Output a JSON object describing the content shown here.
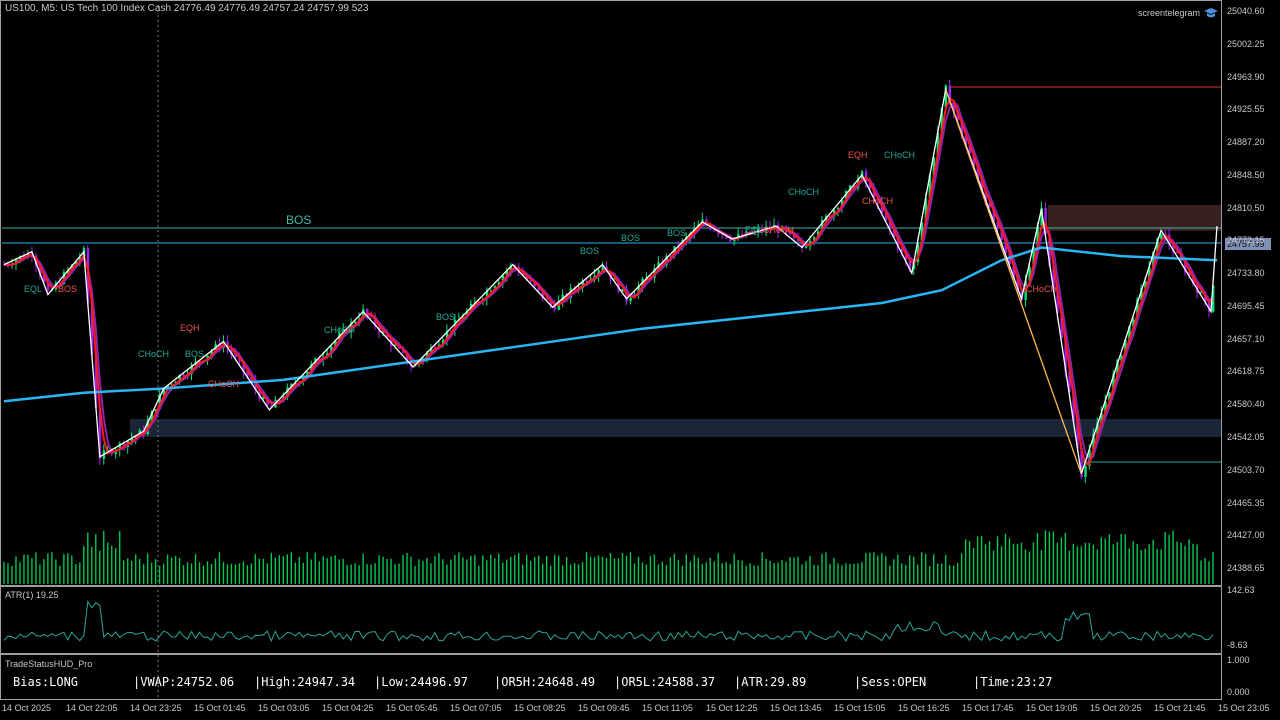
{
  "window": {
    "title": "US100, M5:  US Tech 100 Index Cash  24776.49 24776.49 24757.24 24757.99  523",
    "brand": "screentelegram"
  },
  "price_axis": {
    "ticks": [
      "25040.60",
      "25002.25",
      "24963.90",
      "24925.55",
      "24887.20",
      "24848.50",
      "24810.50",
      "24772.15",
      "24733.80",
      "24695.45",
      "24657.10",
      "24618.75",
      "24580.40",
      "24542.05",
      "24503.70",
      "24465.35",
      "24427.00",
      "24388.65"
    ],
    "current_price": "24757.99"
  },
  "annotations": {
    "bos_big": "BOS",
    "labels": [
      {
        "text": "EQL",
        "color": "#26a69a"
      },
      {
        "text": "BOS",
        "color": "#ef5350"
      },
      {
        "text": "EQH",
        "color": "#ef5350"
      },
      {
        "text": "CHoCH",
        "color": "#26a69a"
      },
      {
        "text": "BOS",
        "color": "#26a69a"
      },
      {
        "text": "CHoCH",
        "color": "#ef5350"
      },
      {
        "text": "CHoCH",
        "color": "#26a69a"
      },
      {
        "text": "BOS",
        "color": "#26a69a"
      },
      {
        "text": "BOS",
        "color": "#26a69a"
      },
      {
        "text": "BOS",
        "color": "#26a69a"
      },
      {
        "text": "BOS",
        "color": "#26a69a"
      },
      {
        "text": "CHoCH",
        "color": "#26a69a"
      },
      {
        "text": "EQL",
        "color": "#26a69a"
      },
      {
        "text": "CHoCH",
        "color": "#ef5350"
      },
      {
        "text": "EQH",
        "color": "#ef5350"
      },
      {
        "text": "CHoCH",
        "color": "#26a69a"
      },
      {
        "text": "CHoCH",
        "color": "#ef5350"
      },
      {
        "text": "CHoCH",
        "color": "#ef5350"
      }
    ]
  },
  "atr_panel": {
    "label": "ATR(1) 19.25",
    "ticks": [
      "142.63",
      "-8.63"
    ]
  },
  "hud_panel": {
    "title": "TradeStatusHUD_Pro",
    "ticks": [
      "1.000",
      "0.000"
    ],
    "fields": [
      "Bias:LONG",
      "|VWAP:24752.06",
      "|High:24947.34",
      "|Low:24496.97",
      "|OR5H:24648.49",
      "|OR5L:24588.37",
      "|ATR:29.89",
      "|Sess:OPEN",
      "|Time:23:27"
    ]
  },
  "time_axis": {
    "ticks": [
      "14 Oct 2025",
      "14 Oct 22:05",
      "14 Oct 23:25",
      "15 Oct 01:45",
      "15 Oct 03:05",
      "15 Oct 04:25",
      "15 Oct 05:45",
      "15 Oct 07:05",
      "15 Oct 08:25",
      "15 Oct 09:45",
      "15 Oct 11:05",
      "15 Oct 12:25",
      "15 Oct 13:45",
      "15 Oct 15:05",
      "15 Oct 16:25",
      "15 Oct 17:45",
      "15 Oct 19:05",
      "15 Oct 20:25",
      "15 Oct 21:45",
      "15 Oct 23:05"
    ]
  },
  "colors": {
    "bull_candle": "#00e676",
    "bear_candle": "#a020f0",
    "vwap": "#29b6f6",
    "fast_ma": "#ff1a1a",
    "slow_ma": "#8e24aa",
    "zigzag": "#ffffff",
    "zigzag_alt": "#ffb74d",
    "volume": "#00c853",
    "atr": "#26a69a"
  },
  "chart_data": {
    "type": "candlestick",
    "symbol": "US100",
    "timeframe": "M5",
    "ylim": [
      24370,
      25050
    ],
    "swing_points": [
      [
        0,
        24745
      ],
      [
        14,
        24760
      ],
      [
        22,
        24710
      ],
      [
        40,
        24760
      ],
      [
        48,
        24520
      ],
      [
        70,
        24550
      ],
      [
        80,
        24600
      ],
      [
        110,
        24655
      ],
      [
        133,
        24575
      ],
      [
        180,
        24690
      ],
      [
        205,
        24625
      ],
      [
        255,
        24745
      ],
      [
        275,
        24695
      ],
      [
        300,
        24745
      ],
      [
        312,
        24705
      ],
      [
        350,
        24795
      ],
      [
        365,
        24775
      ],
      [
        387,
        24790
      ],
      [
        400,
        24765
      ],
      [
        430,
        24850
      ],
      [
        455,
        24735
      ],
      [
        472,
        24950
      ],
      [
        510,
        24705
      ],
      [
        520,
        24810
      ],
      [
        540,
        24500
      ],
      [
        580,
        24785
      ],
      [
        605,
        24690
      ],
      [
        608,
        24790
      ]
    ],
    "vwap_points": [
      [
        0,
        24585
      ],
      [
        40,
        24595
      ],
      [
        80,
        24600
      ],
      [
        140,
        24610
      ],
      [
        200,
        24630
      ],
      [
        260,
        24650
      ],
      [
        320,
        24670
      ],
      [
        380,
        24685
      ],
      [
        440,
        24700
      ],
      [
        470,
        24715
      ],
      [
        500,
        24750
      ],
      [
        520,
        24765
      ],
      [
        560,
        24755
      ],
      [
        608,
        24750
      ]
    ]
  }
}
